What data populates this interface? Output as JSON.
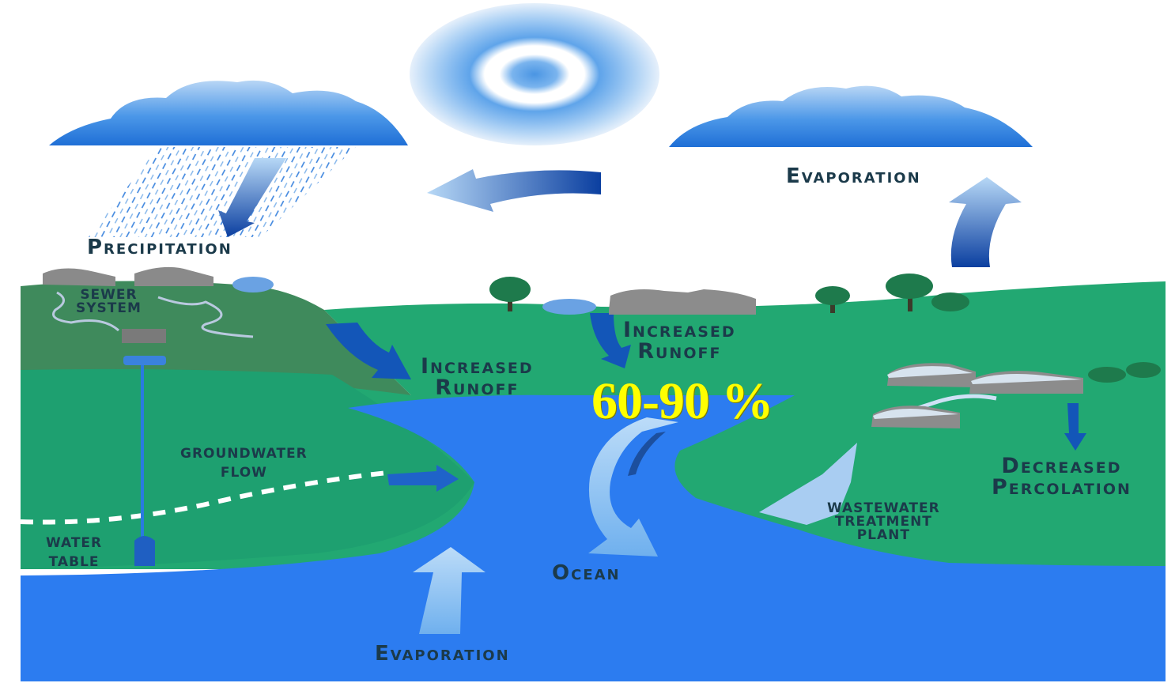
{
  "labels": {
    "precipitation": "Precipitation",
    "evaporation_top": "Evaporation",
    "sewer_system": [
      "Sewer",
      "System"
    ],
    "increased_runoff_left": [
      "Increased",
      "Runoff"
    ],
    "increased_runoff_center": [
      "Increased",
      "Runoff"
    ],
    "groundwater_flow": [
      "Groundwater",
      "Flow"
    ],
    "water_table": [
      "Water",
      "Table"
    ],
    "ocean": "Ocean",
    "wastewater_treatment_plant": [
      "Wastewater",
      "Treatment",
      "Plant"
    ],
    "decreased_percolation": [
      "Decreased",
      "Percolation"
    ],
    "evaporation_bottom": "Evaporation"
  },
  "highlight": "60-90 %",
  "colors": {
    "sky": "#ffffff",
    "cloud": "#2f86e6",
    "land_light": "#22a872",
    "land_dark": "#3f8a5c",
    "ocean": "#2c7cf0",
    "arrow_dark": "#0f4fb3",
    "arrow_light": "#8ec4f2",
    "label_text": "#1b3a4a",
    "highlight_text": "#ffff00"
  }
}
